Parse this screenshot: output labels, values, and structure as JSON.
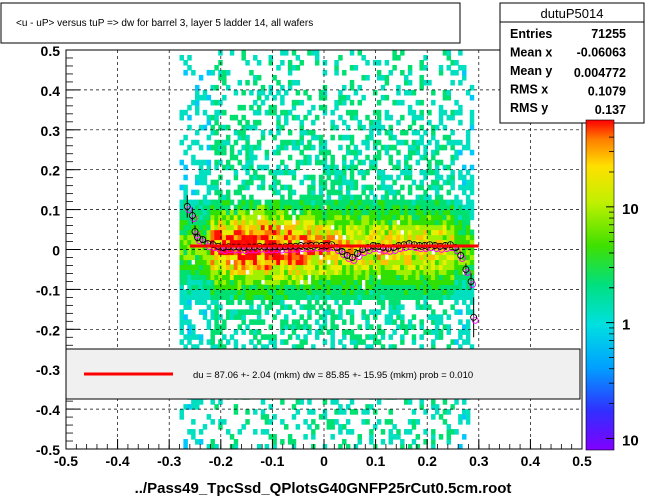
{
  "title_box": {
    "text": "<u - uP>      versus  tuP =>  dw for barrel 3, layer 5 ladder 14, all wafers"
  },
  "stats": {
    "name": "dutuP5014",
    "rows": [
      {
        "label": "Entries",
        "value": "71255"
      },
      {
        "label": "Mean x",
        "value": "-0.06063"
      },
      {
        "label": "Mean y",
        "value": "0.004772"
      },
      {
        "label": "RMS x",
        "value": "0.1079"
      },
      {
        "label": "RMS y",
        "value": "0.137"
      }
    ]
  },
  "fit_legend": {
    "text": "du =   87.06 +-  2.04 (mkm) dw =   85.85 +- 15.95 (mkm) prob = 0.010"
  },
  "footer": {
    "text": "../Pass49_TpcSsd_QPlotsG40GNFP25rCut0.5cm.root"
  },
  "colors": {
    "fit_line": "#ff0000",
    "profile_marker": "#000000",
    "profile_marker_alt": "#ff00ff"
  },
  "chart_data": {
    "type": "heatmap",
    "title": "<u - uP>      versus  tuP =>  dw for barrel 3, layer 5 ladder 14, all wafers",
    "xlim": [
      -0.5,
      0.5
    ],
    "ylim": [
      -0.5,
      0.5
    ],
    "x_ticks": [
      "-0.5",
      "-0.4",
      "-0.3",
      "-0.2",
      "-0.1",
      "0",
      "0.1",
      "0.2",
      "0.3",
      "0.4",
      "0.5"
    ],
    "y_ticks": [
      "-0.5",
      "-0.4",
      "-0.3",
      "-0.2",
      "-0.1",
      "0",
      "0.1",
      "0.2",
      "0.3",
      "0.4",
      "0.5"
    ],
    "x_tick_values": [
      -0.5,
      -0.4,
      -0.3,
      -0.2,
      -0.1,
      0,
      0.1,
      0.2,
      0.3,
      0.4,
      0.5
    ],
    "y_tick_values": [
      -0.5,
      -0.4,
      -0.3,
      -0.2,
      -0.1,
      0,
      0.1,
      0.2,
      0.3,
      0.4,
      0.5
    ],
    "grid": true,
    "log_z": true,
    "colorbar_labels": [
      "10",
      "1",
      "10"
    ],
    "colorbar_values": [
      10,
      1,
      0.1
    ],
    "occupied_x_range": [
      -0.28,
      0.29
    ],
    "fit_line": {
      "x": [
        -0.26,
        0.3
      ],
      "y": [
        0.0087,
        0.0087
      ]
    },
    "profile_points": [
      {
        "x": -0.265,
        "y": 0.108,
        "err": 0.028
      },
      {
        "x": -0.255,
        "y": 0.085,
        "err": 0.02
      },
      {
        "x": -0.25,
        "y": 0.045,
        "err": 0.015
      },
      {
        "x": -0.245,
        "y": 0.03,
        "err": 0.01
      },
      {
        "x": -0.235,
        "y": 0.025,
        "err": 0.008
      },
      {
        "x": -0.225,
        "y": 0.015,
        "err": 0.006
      },
      {
        "x": -0.215,
        "y": 0.012,
        "err": 0.005
      },
      {
        "x": -0.205,
        "y": 0.008,
        "err": 0.004
      },
      {
        "x": -0.195,
        "y": 0.005,
        "err": 0.004
      },
      {
        "x": -0.185,
        "y": 0.007,
        "err": 0.004
      },
      {
        "x": -0.175,
        "y": 0.006,
        "err": 0.004
      },
      {
        "x": -0.165,
        "y": 0.006,
        "err": 0.004
      },
      {
        "x": -0.155,
        "y": 0.005,
        "err": 0.004
      },
      {
        "x": -0.145,
        "y": 0.006,
        "err": 0.004
      },
      {
        "x": -0.135,
        "y": 0.006,
        "err": 0.004
      },
      {
        "x": -0.125,
        "y": 0.008,
        "err": 0.004
      },
      {
        "x": -0.115,
        "y": 0.006,
        "err": 0.004
      },
      {
        "x": -0.105,
        "y": 0.006,
        "err": 0.004
      },
      {
        "x": -0.095,
        "y": 0.007,
        "err": 0.004
      },
      {
        "x": -0.085,
        "y": 0.006,
        "err": 0.004
      },
      {
        "x": -0.075,
        "y": 0.007,
        "err": 0.004
      },
      {
        "x": -0.065,
        "y": 0.008,
        "err": 0.004
      },
      {
        "x": -0.055,
        "y": 0.008,
        "err": 0.004
      },
      {
        "x": -0.045,
        "y": 0.01,
        "err": 0.004
      },
      {
        "x": -0.035,
        "y": 0.009,
        "err": 0.004
      },
      {
        "x": -0.025,
        "y": 0.01,
        "err": 0.004
      },
      {
        "x": -0.015,
        "y": 0.011,
        "err": 0.004
      },
      {
        "x": -0.005,
        "y": 0.01,
        "err": 0.004
      },
      {
        "x": 0.005,
        "y": 0.01,
        "err": 0.004
      },
      {
        "x": 0.015,
        "y": 0.012,
        "err": 0.004
      },
      {
        "x": 0.025,
        "y": 0.005,
        "err": 0.005
      },
      {
        "x": 0.035,
        "y": -0.005,
        "err": 0.005
      },
      {
        "x": 0.045,
        "y": -0.015,
        "err": 0.006
      },
      {
        "x": 0.055,
        "y": -0.02,
        "err": 0.006
      },
      {
        "x": 0.065,
        "y": -0.01,
        "err": 0.006
      },
      {
        "x": 0.075,
        "y": 0.0,
        "err": 0.006
      },
      {
        "x": 0.085,
        "y": 0.005,
        "err": 0.006
      },
      {
        "x": 0.095,
        "y": 0.01,
        "err": 0.006
      },
      {
        "x": 0.105,
        "y": 0.008,
        "err": 0.006
      },
      {
        "x": 0.115,
        "y": 0.005,
        "err": 0.006
      },
      {
        "x": 0.125,
        "y": 0.003,
        "err": 0.006
      },
      {
        "x": 0.135,
        "y": 0.005,
        "err": 0.006
      },
      {
        "x": 0.145,
        "y": 0.01,
        "err": 0.006
      },
      {
        "x": 0.155,
        "y": 0.012,
        "err": 0.006
      },
      {
        "x": 0.165,
        "y": 0.015,
        "err": 0.006
      },
      {
        "x": 0.175,
        "y": 0.012,
        "err": 0.006
      },
      {
        "x": 0.185,
        "y": 0.01,
        "err": 0.006
      },
      {
        "x": 0.195,
        "y": 0.01,
        "err": 0.006
      },
      {
        "x": 0.205,
        "y": 0.012,
        "err": 0.006
      },
      {
        "x": 0.215,
        "y": 0.01,
        "err": 0.006
      },
      {
        "x": 0.225,
        "y": 0.008,
        "err": 0.006
      },
      {
        "x": 0.235,
        "y": 0.01,
        "err": 0.006
      },
      {
        "x": 0.245,
        "y": 0.012,
        "err": 0.006
      },
      {
        "x": 0.255,
        "y": 0.005,
        "err": 0.006
      },
      {
        "x": 0.265,
        "y": -0.015,
        "err": 0.01
      },
      {
        "x": 0.275,
        "y": -0.05,
        "err": 0.015
      },
      {
        "x": 0.285,
        "y": -0.08,
        "err": 0.02
      },
      {
        "x": 0.29,
        "y": -0.17,
        "err": 0.05
      }
    ]
  }
}
